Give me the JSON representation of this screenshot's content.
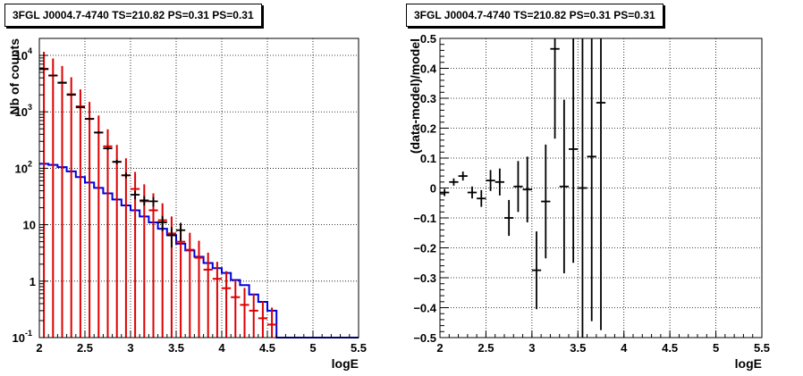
{
  "panels": {
    "left_title": "3FGL J0004.7-4740 TS=210.82 PS=0.31 PS=0.31",
    "right_title": "3FGL J0004.7-4740 TS=210.82 PS=0.31 PS=0.31"
  },
  "chart_data": [
    {
      "type": "line",
      "scale": "log-y",
      "title": "3FGL J0004.7-4740 TS=210.82 PS=0.31 PS=0.31",
      "xlabel": "logE",
      "ylabel": "Nb of counts",
      "xlim": [
        2,
        5.5
      ],
      "ylim": [
        0.1,
        20000
      ],
      "grid": true,
      "x_ticks": [
        "2",
        "2.5",
        "3",
        "3.5",
        "4",
        "4.5",
        "5",
        "5.5"
      ],
      "y_ticks": [
        {
          "value": 0.1,
          "label": "10",
          "sup": "-1"
        },
        {
          "value": 1,
          "label": "1",
          "sup": ""
        },
        {
          "value": 10,
          "label": "10",
          "sup": ""
        },
        {
          "value": 100,
          "label": "10",
          "sup": "2"
        },
        {
          "value": 1000,
          "label": "10",
          "sup": "3"
        },
        {
          "value": 10000,
          "label": "10",
          "sup": "4"
        }
      ],
      "colors": {
        "data": "#000000",
        "model": "#dd0000",
        "component": "#0000dd"
      },
      "bins": [
        2.0,
        2.1,
        2.2,
        2.3,
        2.4,
        2.5,
        2.6,
        2.7,
        2.8,
        2.9,
        3.0,
        3.1,
        3.2,
        3.3,
        3.4,
        3.5,
        3.6,
        3.7,
        3.8,
        3.9,
        4.0,
        4.1,
        4.2,
        4.3,
        4.4,
        4.5,
        4.6,
        4.7,
        4.8,
        4.9,
        5.0,
        5.1,
        5.2,
        5.3,
        5.4,
        5.5
      ],
      "series": [
        {
          "kind": "data-points",
          "x": [
            2.05,
            2.15,
            2.25,
            2.35,
            2.45,
            2.55,
            2.65,
            2.75,
            2.85,
            2.95,
            3.05,
            3.15,
            3.25,
            3.35,
            3.45,
            3.55
          ],
          "y": [
            5700,
            4400,
            3300,
            2000,
            1200,
            750,
            430,
            225,
            130,
            75,
            34,
            27,
            26,
            11,
            6.5,
            8
          ]
        },
        {
          "kind": "model-points",
          "x": [
            2.05,
            2.15,
            2.25,
            2.35,
            2.45,
            2.55,
            2.65,
            2.75,
            2.85,
            2.95,
            3.05,
            3.15,
            3.25,
            3.35,
            3.45,
            3.55,
            3.65,
            3.75,
            3.85,
            3.95,
            4.05,
            4.15,
            4.25,
            4.35,
            4.45,
            4.55
          ],
          "y": [
            5800,
            4400,
            3250,
            2050,
            1250,
            750,
            430,
            245,
            130,
            75,
            43,
            26,
            18,
            12,
            7,
            5,
            3.6,
            2.6,
            1.6,
            1.1,
            0.75,
            0.52,
            0.38,
            0.3,
            0.22,
            0.17
          ],
          "err_lo": [
            5800,
            4400,
            3250,
            2050,
            1250,
            750,
            430,
            245,
            130,
            75,
            43,
            26,
            18,
            12,
            7,
            5,
            3.6,
            2.6,
            1.6,
            1.1,
            0.75,
            0.52,
            0.38,
            0.3,
            0.22,
            0.17
          ],
          "err_hi": [
            5800,
            4400,
            3250,
            2050,
            1250,
            750,
            430,
            245,
            130,
            75,
            43,
            26,
            18,
            12,
            7,
            5,
            3.6,
            2.6,
            1.6,
            1.1,
            0.75,
            0.52,
            0.38,
            0.3,
            0.22,
            0.17
          ]
        },
        {
          "kind": "component-histogram",
          "values": [
            120,
            115,
            105,
            88,
            70,
            56,
            45,
            36,
            28,
            22,
            18,
            14,
            11,
            8.5,
            6.5,
            4.6,
            3.5,
            2.7,
            2.1,
            1.7,
            1.4,
            1.05,
            0.85,
            0.58,
            0.43,
            0.3,
            0.1,
            0.1,
            0.1,
            0.1,
            0.1,
            0.1,
            0.1,
            0.1,
            0.1
          ]
        }
      ]
    },
    {
      "type": "scatter",
      "title": "3FGL J0004.7-4740 TS=210.82 PS=0.31 PS=0.31",
      "xlabel": "logE",
      "ylabel": "(data-model)/model",
      "xlim": [
        2,
        5.5
      ],
      "ylim": [
        -0.5,
        0.5
      ],
      "grid": true,
      "x_ticks": [
        "2",
        "2.5",
        "3",
        "3.5",
        "4",
        "4.5",
        "5",
        "5.5"
      ],
      "y_ticks": [
        "-0.5",
        "-0.4",
        "-0.3",
        "-0.2",
        "-0.1",
        "0",
        "0.1",
        "0.2",
        "0.3",
        "0.4",
        "0.5"
      ],
      "series": [
        {
          "x": [
            2.05,
            2.15,
            2.25,
            2.35,
            2.45,
            2.55,
            2.65,
            2.75,
            2.85,
            2.95,
            3.05,
            3.15,
            3.25,
            3.35,
            3.45,
            3.55,
            3.65,
            3.75
          ],
          "y": [
            -0.015,
            0.02,
            0.04,
            -0.015,
            -0.035,
            0.025,
            0.02,
            -0.1,
            0.005,
            -0.005,
            -0.275,
            -0.045,
            0.465,
            0.005,
            0.13,
            0.0,
            0.105,
            0.285
          ],
          "err": [
            0.012,
            0.012,
            0.015,
            0.02,
            0.028,
            0.035,
            0.045,
            0.06,
            0.085,
            0.11,
            0.13,
            0.19,
            0.3,
            0.29,
            0.38,
            0.55,
            0.55,
            0.76
          ]
        }
      ]
    }
  ]
}
